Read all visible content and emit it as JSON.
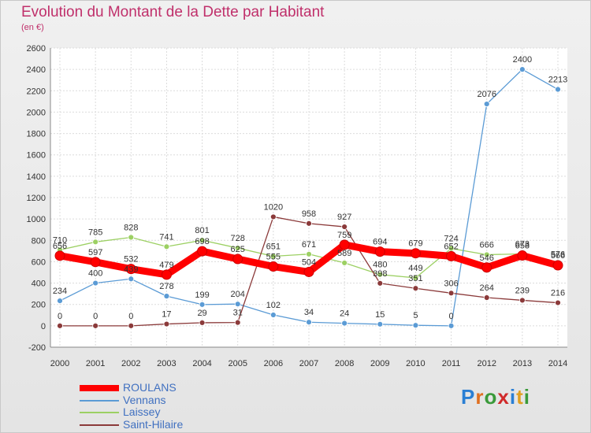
{
  "title": "Evolution du Montant de la Dette par Habitant",
  "subtitle": "(en €)",
  "logo_text": "Proxiti",
  "chart_data": {
    "type": "line",
    "title": "Evolution du Montant de la Dette par Habitant",
    "subtitle": "(en €)",
    "x": [
      "2000",
      "2001",
      "2002",
      "2003",
      "2004",
      "2005",
      "2006",
      "2007",
      "2008",
      "2009",
      "2010",
      "2011",
      "2012",
      "2013",
      "2014"
    ],
    "ylim": [
      -200,
      2600
    ],
    "yticks": [
      "-200",
      "0",
      "200",
      "400",
      "600",
      "800",
      "1000",
      "1200",
      "1400",
      "1600",
      "1800",
      "2000",
      "2200",
      "2400",
      "2600"
    ],
    "grid": true,
    "legend_position": "bottom-left",
    "series": [
      {
        "name": "ROULANS",
        "color": "#ff0000",
        "values": [
          656,
          597,
          532,
          479,
          698,
          625,
          555,
          504,
          759,
          694,
          679,
          652,
          546,
          658,
          566
        ],
        "labels": [
          "656",
          "597",
          "532",
          "479",
          "698",
          "625",
          "555",
          "504",
          "759",
          "694",
          "679",
          "652",
          "546",
          "658",
          "566"
        ]
      },
      {
        "name": "Vennans",
        "color": "#5b9bd5",
        "values": [
          234,
          400,
          439,
          278,
          199,
          204,
          102,
          34,
          24,
          15,
          5,
          0,
          2076,
          2400,
          2213
        ],
        "labels": [
          "234",
          "400",
          "439",
          "278",
          "199",
          "204",
          "102",
          "34",
          "24",
          "15",
          "5",
          "0",
          "2076",
          "2400",
          "2213"
        ]
      },
      {
        "name": "Laissey",
        "color": "#9cd063",
        "values": [
          710,
          785,
          828,
          741,
          801,
          728,
          651,
          671,
          589,
          480,
          449,
          724,
          666,
          673,
          576
        ],
        "labels": [
          "710",
          "785",
          "828",
          "741",
          "801",
          "728",
          "651",
          "671",
          "589",
          "480",
          "449",
          "724",
          "666",
          "673",
          "576"
        ]
      },
      {
        "name": "Saint-Hilaire",
        "color": "#8b3a3a",
        "values": [
          0,
          0,
          0,
          17,
          29,
          31,
          1020,
          958,
          927,
          398,
          351,
          306,
          264,
          239,
          216
        ],
        "labels": [
          "0",
          "0",
          "0",
          "17",
          "29",
          "31",
          "1020",
          "958",
          "927",
          "398",
          "351",
          "306",
          "264",
          "239",
          "216"
        ]
      }
    ]
  }
}
